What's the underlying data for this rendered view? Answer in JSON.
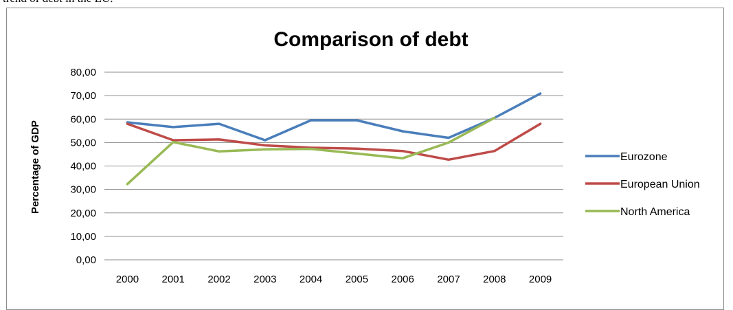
{
  "document": {
    "top_text": "trend of debt in the EU."
  },
  "chart_data": {
    "type": "line",
    "title": "Comparison of debt",
    "xlabel": "",
    "ylabel": "Percentage of GDP",
    "categories": [
      "2000",
      "2001",
      "2002",
      "2003",
      "2004",
      "2005",
      "2006",
      "2007",
      "2008",
      "2009"
    ],
    "y_tick_labels": [
      "0,00",
      "10,00",
      "20,00",
      "30,00",
      "40,00",
      "50,00",
      "60,00",
      "70,00",
      "80,00"
    ],
    "ylim": [
      0,
      80
    ],
    "grid": true,
    "legend_position": "right",
    "series": [
      {
        "name": "Eurozone",
        "color": "#4a7ebb",
        "values": [
          58.6,
          56.6,
          58.0,
          51.0,
          59.5,
          59.5,
          54.8,
          52.0,
          60.5,
          70.9
        ]
      },
      {
        "name": "European Union",
        "color": "#be4b48",
        "values": [
          58.0,
          51.0,
          51.3,
          48.8,
          47.8,
          47.4,
          46.4,
          42.7,
          46.4,
          58.0
        ]
      },
      {
        "name": "North America",
        "color": "#98b954",
        "values": [
          32.3,
          50.2,
          46.2,
          47.1,
          47.3,
          45.3,
          43.3,
          50.0,
          60.5,
          null
        ]
      }
    ]
  }
}
